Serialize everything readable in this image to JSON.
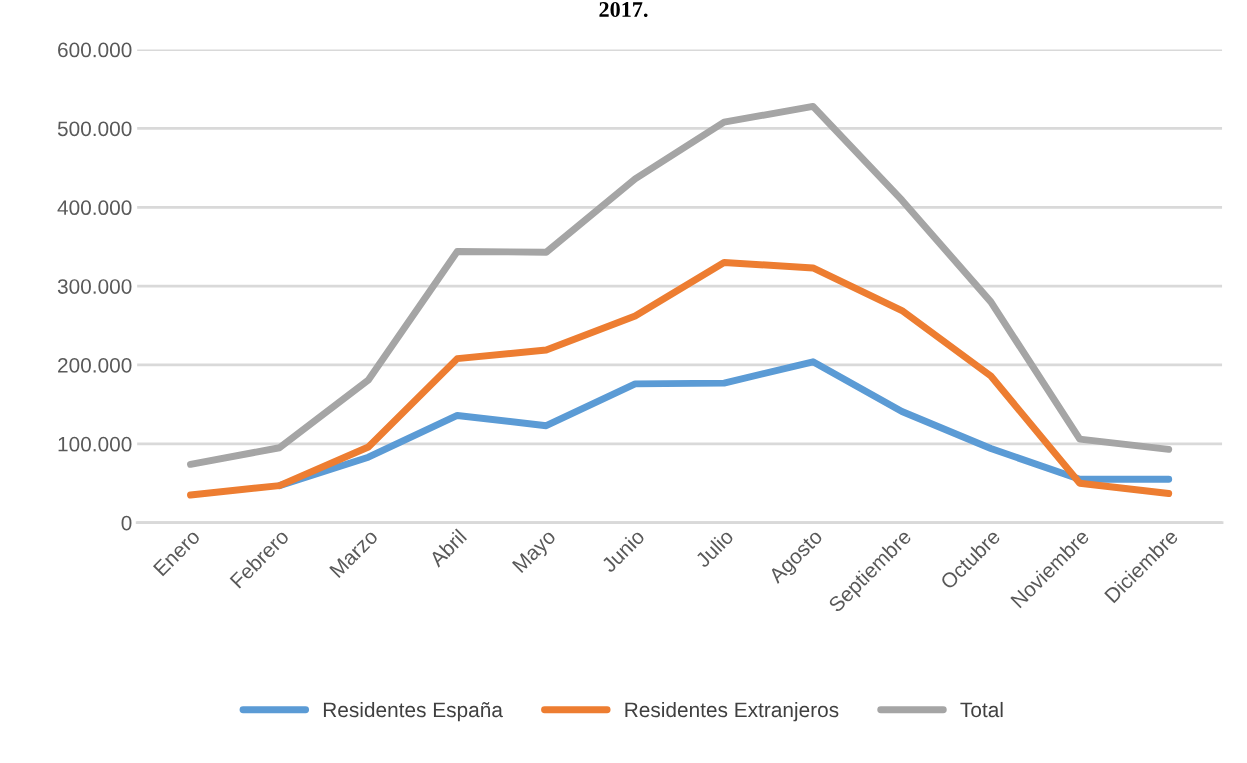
{
  "chart_data": {
    "type": "line",
    "title": "2017.",
    "categories": [
      "Enero",
      "Febrero",
      "Marzo",
      "Abril",
      "Mayo",
      "Junio",
      "Julio",
      "Agosto",
      "Septiembre",
      "Octubre",
      "Noviembre",
      "Diciembre"
    ],
    "series": [
      {
        "name": "Residentes España",
        "color": "#5b9bd5",
        "values": [
          null,
          47000,
          83000,
          136000,
          123000,
          176000,
          177000,
          204000,
          141000,
          94000,
          55000,
          55000
        ]
      },
      {
        "name": "Residentes Extranjeros",
        "color": "#ed7d31",
        "values": [
          35000,
          47000,
          96000,
          208000,
          219000,
          262000,
          330000,
          323000,
          269000,
          186000,
          50000,
          37000
        ]
      },
      {
        "name": "Total",
        "color": "#a5a5a5",
        "values": [
          74000,
          95000,
          181000,
          344000,
          343000,
          436000,
          508000,
          528000,
          409000,
          280000,
          106000,
          93000
        ]
      }
    ],
    "ylim": [
      0,
      600000
    ],
    "yticks": [
      0,
      {
        "value": 100000,
        "label": "100.000"
      },
      {
        "value": 200000,
        "label": "200.000"
      },
      {
        "value": 300000,
        "label": "300.000"
      },
      {
        "value": 400000,
        "label": "400.000"
      },
      {
        "value": 500000,
        "label": "500.000"
      },
      {
        "value": 600000,
        "label": "600.000"
      }
    ],
    "grid": "y",
    "legend": "bottom",
    "marker": "none",
    "line_style": "solid"
  }
}
